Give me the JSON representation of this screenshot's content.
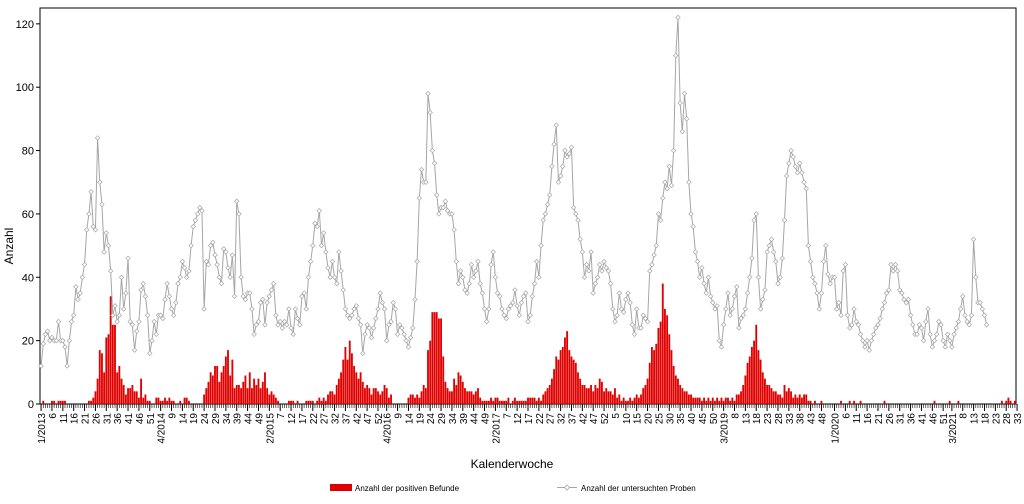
{
  "chart_data": {
    "type": "bar+line",
    "title": "",
    "xlabel": "Kalenderwoche",
    "ylabel": "Anzahl",
    "ylim": [
      0,
      125
    ],
    "y_ticks": [
      0,
      20,
      40,
      60,
      80,
      100,
      120
    ],
    "grid": false,
    "legend_placement": "bottom-center",
    "x_tick_labels": [
      "1/2013",
      "6",
      "11",
      "16",
      "21",
      "26",
      "31",
      "36",
      "41",
      "46",
      "51",
      "4/2014",
      "9",
      "14",
      "19",
      "24",
      "29",
      "34",
      "39",
      "44",
      "49",
      "2/2015",
      "7",
      "12",
      "17",
      "22",
      "27",
      "32",
      "37",
      "42",
      "47",
      "52",
      "4/2016",
      "9",
      "14",
      "19",
      "24",
      "29",
      "34",
      "39",
      "44",
      "49",
      "2/2017",
      "7",
      "12",
      "17",
      "22",
      "27",
      "32",
      "37",
      "42",
      "47",
      "52",
      "5",
      "10",
      "15",
      "20",
      "25",
      "30",
      "35",
      "40",
      "45",
      "50",
      "3/2019",
      "8",
      "13",
      "18",
      "23",
      "28",
      "33",
      "38",
      "43",
      "48",
      "1/2020",
      "6",
      "11",
      "16",
      "21",
      "26",
      "31",
      "36",
      "41",
      "46",
      "51",
      "3/2021",
      "8",
      "13",
      "18",
      "23",
      "28",
      "33"
    ],
    "x_tick_positions": [
      1,
      6,
      11,
      16,
      21,
      26,
      31,
      36,
      41,
      46,
      51,
      56,
      61,
      66,
      71,
      76,
      81,
      86,
      91,
      96,
      101,
      106,
      111,
      116,
      121,
      126,
      131,
      136,
      141,
      146,
      151,
      156,
      160,
      165,
      170,
      175,
      180,
      185,
      190,
      195,
      200,
      205,
      210,
      215,
      220,
      225,
      230,
      235,
      240,
      245,
      250,
      255,
      260,
      265,
      270,
      275,
      280,
      285,
      290,
      295,
      300,
      305,
      310,
      315,
      320,
      325,
      330,
      335,
      340,
      345,
      350,
      355,
      360,
      366,
      371,
      376,
      381,
      386,
      391,
      396,
      401,
      406,
      411,
      416,
      420,
      425,
      430,
      435,
      440,
      445,
      450
    ],
    "series": [
      {
        "name": "Anzahl der positiven Befunde",
        "kind": "bar",
        "color": "#e00000",
        "values": [
          0,
          1,
          0,
          0,
          0,
          1,
          1,
          0,
          1,
          1,
          1,
          1,
          0,
          0,
          0,
          0,
          0,
          0,
          0,
          0,
          0,
          0,
          1,
          1,
          2,
          4,
          8,
          17,
          16,
          10,
          21,
          22,
          34,
          25,
          25,
          10,
          12,
          8,
          6,
          3,
          5,
          5,
          6,
          4,
          4,
          2,
          8,
          2,
          3,
          1,
          1,
          0,
          0,
          2,
          2,
          1,
          1,
          2,
          1,
          2,
          1,
          1,
          0,
          0,
          1,
          0,
          2,
          2,
          1,
          0,
          0,
          0,
          0,
          0,
          0,
          3,
          5,
          7,
          10,
          9,
          12,
          12,
          7,
          10,
          12,
          15,
          17,
          9,
          14,
          5,
          6,
          6,
          5,
          7,
          9,
          5,
          10,
          5,
          8,
          6,
          8,
          5,
          7,
          10,
          5,
          3,
          4,
          3,
          2,
          1,
          0,
          0,
          0,
          0,
          1,
          1,
          1,
          0,
          1,
          0,
          0,
          0,
          1,
          1,
          1,
          1,
          0,
          1,
          2,
          1,
          2,
          1,
          3,
          4,
          4,
          3,
          6,
          8,
          10,
          14,
          18,
          14,
          20,
          16,
          12,
          10,
          8,
          10,
          7,
          5,
          6,
          5,
          3,
          5,
          5,
          4,
          3,
          4,
          6,
          5,
          2,
          3,
          0,
          0,
          0,
          0,
          0,
          0,
          0,
          2,
          3,
          3,
          2,
          3,
          2,
          4,
          6,
          5,
          17,
          20,
          29,
          29,
          29,
          27,
          27,
          15,
          7,
          5,
          4,
          4,
          8,
          6,
          10,
          9,
          7,
          5,
          4,
          4,
          4,
          3,
          4,
          5,
          2,
          1,
          1,
          1,
          1,
          2,
          1,
          2,
          2,
          1,
          1,
          1,
          1,
          2,
          0,
          1,
          2,
          1,
          1,
          1,
          1,
          1,
          2,
          2,
          2,
          2,
          1,
          2,
          1,
          3,
          4,
          5,
          6,
          8,
          11,
          15,
          14,
          17,
          18,
          21,
          23,
          17,
          15,
          14,
          13,
          10,
          8,
          6,
          6,
          5,
          5,
          6,
          4,
          6,
          5,
          8,
          7,
          4,
          5,
          4,
          4,
          3,
          5,
          2,
          3,
          1,
          2,
          1,
          1,
          2,
          1,
          2,
          3,
          2,
          3,
          5,
          6,
          8,
          13,
          18,
          17,
          19,
          24,
          26,
          38,
          30,
          28,
          22,
          17,
          12,
          9,
          8,
          6,
          5,
          4,
          4,
          3,
          3,
          2,
          2,
          2,
          2,
          1,
          2,
          1,
          2,
          1,
          2,
          1,
          2,
          1,
          2,
          1,
          2,
          2,
          1,
          2,
          1,
          3,
          3,
          4,
          6,
          9,
          13,
          15,
          18,
          20,
          25,
          17,
          14,
          10,
          8,
          6,
          6,
          5,
          4,
          4,
          3,
          3,
          2,
          6,
          4,
          5,
          4,
          2,
          3,
          2,
          3,
          2,
          3,
          3,
          1,
          1,
          0,
          1,
          0,
          0,
          1,
          0,
          0,
          0,
          0,
          0,
          0,
          0,
          0,
          1,
          0,
          0,
          0,
          1,
          0,
          1,
          0,
          0,
          1,
          0,
          0,
          0,
          0,
          0,
          0,
          0,
          0,
          0,
          0,
          1,
          0,
          0,
          0,
          0,
          0,
          0,
          0,
          0,
          0,
          0,
          0,
          0,
          0,
          0,
          0,
          0,
          0,
          0,
          0,
          0,
          0,
          0,
          1,
          0,
          0,
          0,
          0,
          0,
          0,
          1,
          0,
          0,
          0,
          1,
          0,
          0,
          0,
          0,
          0,
          0,
          0,
          0,
          0,
          0,
          0,
          0,
          0,
          0,
          0,
          0,
          0,
          0,
          0,
          1,
          0,
          1,
          2,
          1,
          0,
          1
        ]
      },
      {
        "name": "Anzahl der untersuchten Proben",
        "kind": "line",
        "color": "#a6a6a6",
        "values": [
          12,
          19,
          22,
          23,
          20,
          21,
          20,
          20,
          26,
          20,
          20,
          18,
          12,
          20,
          26,
          28,
          37,
          33,
          35,
          40,
          44,
          55,
          60,
          67,
          56,
          55,
          84,
          70,
          63,
          48,
          54,
          50,
          42,
          28,
          31,
          26,
          28,
          40,
          30,
          35,
          46,
          26,
          25,
          17,
          23,
          26,
          36,
          38,
          34,
          28,
          16,
          20,
          26,
          22,
          28,
          28,
          27,
          33,
          38,
          34,
          30,
          28,
          32,
          38,
          40,
          45,
          43,
          40,
          42,
          50,
          56,
          58,
          60,
          62,
          61,
          30,
          45,
          44,
          50,
          51,
          47,
          44,
          40,
          38,
          49,
          48,
          43,
          40,
          47,
          34,
          64,
          60,
          40,
          34,
          33,
          35,
          35,
          30,
          22,
          25,
          26,
          32,
          33,
          25,
          32,
          34,
          36,
          38,
          28,
          25,
          26,
          24,
          26,
          25,
          30,
          24,
          22,
          30,
          27,
          25,
          34,
          35,
          30,
          40,
          45,
          50,
          57,
          56,
          61,
          50,
          54,
          48,
          43,
          40,
          45,
          40,
          38,
          48,
          42,
          36,
          30,
          28,
          27,
          28,
          30,
          31,
          27,
          25,
          16,
          22,
          25,
          24,
          21,
          24,
          27,
          30,
          35,
          32,
          30,
          20,
          25,
          26,
          32,
          30,
          22,
          25,
          24,
          22,
          20,
          18,
          21,
          24,
          33,
          45,
          65,
          74,
          70,
          70,
          98,
          92,
          80,
          76,
          66,
          60,
          62,
          62,
          64,
          61,
          60,
          60,
          55,
          45,
          38,
          42,
          40,
          36,
          35,
          38,
          44,
          40,
          42,
          45,
          38,
          35,
          30,
          26,
          30,
          44,
          48,
          40,
          35,
          34,
          30,
          28,
          27,
          30,
          31,
          32,
          36,
          31,
          28,
          32,
          34,
          35,
          26,
          28,
          34,
          38,
          45,
          40,
          50,
          58,
          60,
          63,
          66,
          75,
          82,
          88,
          70,
          72,
          75,
          80,
          78,
          79,
          81,
          62,
          60,
          58,
          52,
          48,
          40,
          44,
          42,
          48,
          35,
          38,
          40,
          44,
          42,
          45,
          43,
          42,
          38,
          30,
          26,
          28,
          35,
          30,
          29,
          33,
          35,
          32,
          25,
          22,
          30,
          24,
          24,
          28,
          27,
          26,
          42,
          44,
          47,
          50,
          60,
          58,
          65,
          70,
          68,
          75,
          69,
          80,
          110,
          122,
          95,
          86,
          98,
          90,
          70,
          60,
          56,
          48,
          45,
          40,
          43,
          38,
          35,
          40,
          34,
          32,
          30,
          31,
          20,
          18,
          25,
          30,
          35,
          28,
          30,
          34,
          37,
          24,
          27,
          28,
          30,
          35,
          40,
          46,
          58,
          60,
          40,
          30,
          33,
          36,
          48,
          50,
          52,
          48,
          45,
          38,
          40,
          46,
          58,
          72,
          76,
          80,
          78,
          75,
          73,
          76,
          73,
          70,
          68,
          50,
          45,
          40,
          38,
          35,
          30,
          35,
          45,
          50,
          41,
          38,
          40,
          40,
          30,
          32,
          28,
          42,
          44,
          28,
          24,
          25,
          30,
          26,
          25,
          22,
          20,
          18,
          20,
          17,
          20,
          22,
          24,
          25,
          27,
          30,
          32,
          35,
          36,
          44,
          42,
          44,
          42,
          36,
          35,
          33,
          32,
          33,
          28,
          25,
          22,
          22,
          25,
          24,
          20,
          26,
          30,
          22,
          18,
          20,
          22,
          26,
          25,
          20,
          18,
          22,
          20,
          18,
          22,
          24,
          26,
          30,
          34,
          28,
          26,
          25,
          28,
          52,
          40,
          32,
          32,
          30,
          28,
          25
        ]
      }
    ]
  },
  "legend": {
    "bar_label": "Anzahl der positiven Befunde",
    "line_label": "Anzahl der untersuchten Proben"
  }
}
